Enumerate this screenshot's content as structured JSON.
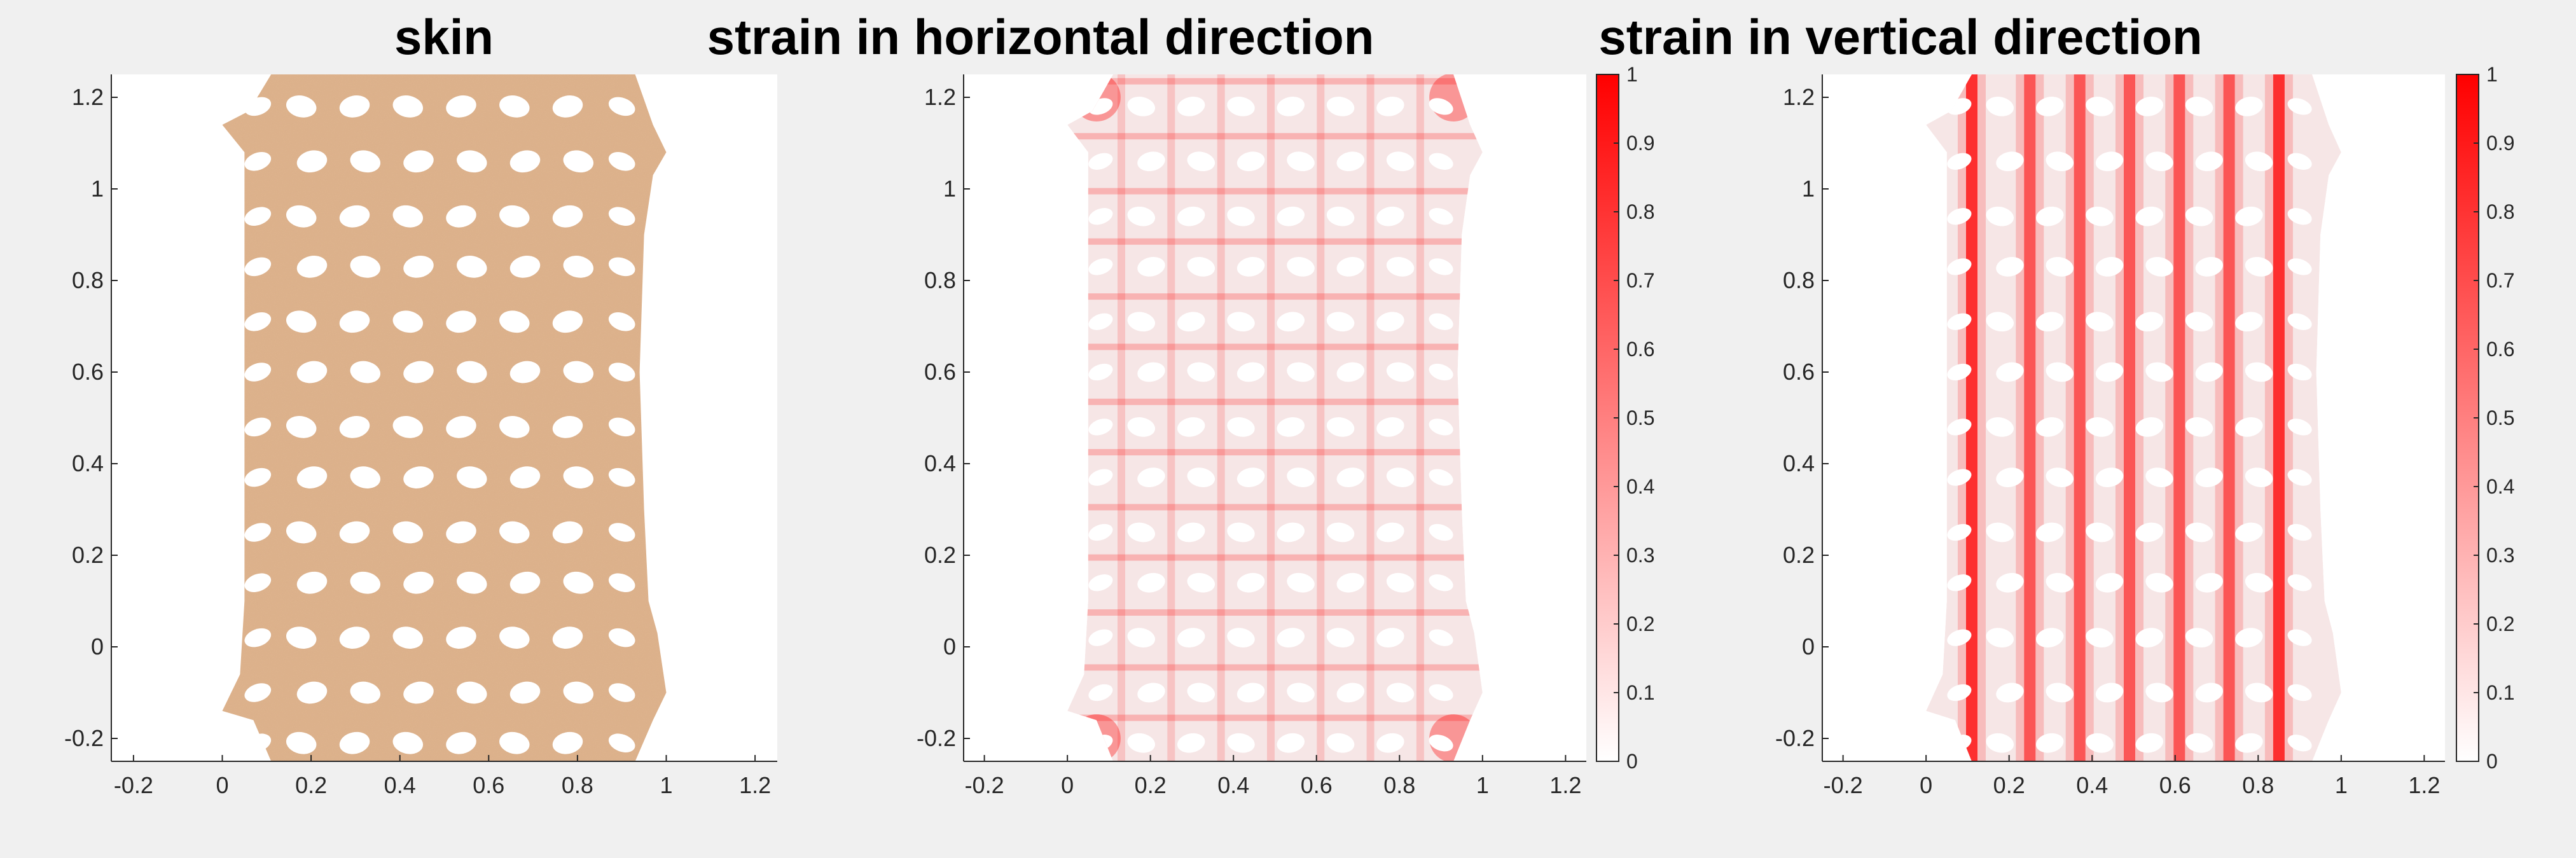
{
  "figure": {
    "background": "#f0f0f0",
    "accent_colors": {
      "skin": "#e1b48e",
      "strain": "#ff0000",
      "strain_light": "#ffffff"
    }
  },
  "chart_data": [
    {
      "type": "heatmap",
      "title": "skin",
      "xlim": [
        -0.25,
        1.25
      ],
      "ylim": [
        -0.25,
        1.25
      ],
      "xticks": [
        -0.2,
        0,
        0.2,
        0.4,
        0.6,
        0.8,
        1,
        1.2
      ],
      "yticks": [
        -0.2,
        0,
        0.2,
        0.4,
        0.6,
        0.8,
        1,
        1.2
      ],
      "xtick_labels": [
        "-0.2",
        "0",
        "0.2",
        "0.4",
        "0.6",
        "0.8",
        "1",
        "1.2"
      ],
      "ytick_labels": [
        "-0.2",
        "0",
        "0.2",
        "0.4",
        "0.6",
        "0.8",
        "1",
        "1.2"
      ],
      "grid": false,
      "colorbar": null,
      "fill": "#e1b48e",
      "shape": "perforated skin with elliptical holes",
      "hole_columns_x": [
        0.19,
        0.31,
        0.43,
        0.55,
        0.67,
        0.79
      ],
      "hole_rows_y": [
        -0.21,
        -0.1,
        0.02,
        0.14,
        0.25,
        0.37,
        0.48,
        0.6,
        0.71,
        0.83,
        0.94,
        1.06,
        1.18
      ]
    },
    {
      "type": "heatmap",
      "title": "strain in horizontal direction",
      "xlim": [
        -0.25,
        1.25
      ],
      "ylim": [
        -0.25,
        1.25
      ],
      "xticks": [
        -0.2,
        0,
        0.2,
        0.4,
        0.6,
        0.8,
        1,
        1.2
      ],
      "yticks": [
        -0.2,
        0,
        0.2,
        0.4,
        0.6,
        0.8,
        1,
        1.2
      ],
      "xtick_labels": [
        "-0.2",
        "0",
        "0.2",
        "0.4",
        "0.6",
        "0.8",
        "1",
        "1.2"
      ],
      "ytick_labels": [
        "-0.2",
        "0",
        "0.2",
        "0.4",
        "0.6",
        "0.8",
        "1",
        "1.2"
      ],
      "grid": false,
      "colorbar": {
        "range": [
          0,
          1
        ],
        "ticks": [
          0,
          0.1,
          0.2,
          0.3,
          0.4,
          0.5,
          0.6,
          0.7,
          0.8,
          0.9,
          1
        ],
        "tick_labels": [
          "0",
          "0.1",
          "0.2",
          "0.3",
          "0.4",
          "0.5",
          "0.6",
          "0.7",
          "0.8",
          "0.9",
          "1"
        ],
        "colormap": [
          "#ffffff",
          "#ff0000"
        ]
      },
      "strain_pattern": "horizontal bands between hole rows",
      "hole_columns_x": [
        0.19,
        0.31,
        0.43,
        0.55,
        0.67,
        0.79
      ],
      "hole_rows_y": [
        -0.21,
        -0.1,
        0.02,
        0.14,
        0.25,
        0.37,
        0.48,
        0.6,
        0.71,
        0.83,
        0.94,
        1.06,
        1.18
      ]
    },
    {
      "type": "heatmap",
      "title": "strain in vertical direction",
      "xlim": [
        -0.25,
        1.25
      ],
      "ylim": [
        -0.25,
        1.25
      ],
      "xticks": [
        -0.2,
        0,
        0.2,
        0.4,
        0.6,
        0.8,
        1,
        1.2
      ],
      "yticks": [
        -0.2,
        0,
        0.2,
        0.4,
        0.6,
        0.8,
        1,
        1.2
      ],
      "xtick_labels": [
        "-0.2",
        "0",
        "0.2",
        "0.4",
        "0.6",
        "0.8",
        "1",
        "1.2"
      ],
      "ytick_labels": [
        "-0.2",
        "0",
        "0.2",
        "0.4",
        "0.6",
        "0.8",
        "1",
        "1.2"
      ],
      "grid": false,
      "colorbar": {
        "range": [
          0,
          1
        ],
        "ticks": [
          0,
          0.1,
          0.2,
          0.3,
          0.4,
          0.5,
          0.6,
          0.7,
          0.8,
          0.9,
          1
        ],
        "tick_labels": [
          "0",
          "0.1",
          "0.2",
          "0.3",
          "0.4",
          "0.5",
          "0.6",
          "0.7",
          "0.8",
          "0.9",
          "1"
        ],
        "colormap": [
          "#ffffff",
          "#ff0000"
        ]
      },
      "strain_pattern": "vertical bands between hole columns",
      "hole_columns_x": [
        0.19,
        0.31,
        0.43,
        0.55,
        0.67,
        0.79
      ],
      "hole_rows_y": [
        -0.21,
        -0.1,
        0.02,
        0.14,
        0.25,
        0.37,
        0.48,
        0.6,
        0.71,
        0.83,
        0.94,
        1.06,
        1.18
      ]
    }
  ]
}
